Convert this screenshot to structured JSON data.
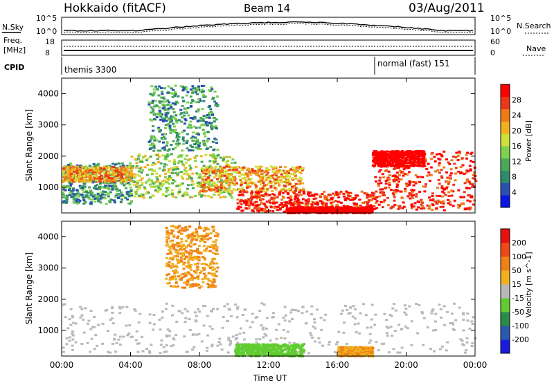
{
  "header": {
    "station": "Hokkaido (fitACF)",
    "beam": "Beam 14",
    "date": "03/Aug/2011"
  },
  "top_strip": {
    "nsky_label": "N.Sky",
    "nsearch_label": "N.Search",
    "freq_label_1": "Freq.",
    "freq_label_2": "[MHz]",
    "nave_label": "Nave",
    "cpid_label": "CPID",
    "left_ticks": [
      "10^5",
      "10^0"
    ],
    "right_ticks": [
      "10^5",
      "10^0"
    ],
    "freq_ticks": [
      "18",
      "8"
    ],
    "nave_ticks": [
      "60",
      "0"
    ],
    "cpid_segments": [
      {
        "label": "themis 3300",
        "start_hour": 0
      },
      {
        "label": "normal (fast) 151",
        "start_hour": 18
      }
    ]
  },
  "chart_data": [
    {
      "type": "heatmap",
      "name": "power",
      "ylabel": "Slant Range [km]",
      "xlabel": "",
      "xlim": [
        0,
        24
      ],
      "ylim": [
        180,
        4500
      ],
      "x_ticks": [
        0,
        4,
        8,
        12,
        16,
        20,
        24
      ],
      "y_ticks": [
        1000,
        2000,
        3000,
        4000
      ],
      "colorbar": {
        "label": "Power [dB]",
        "ticks": [
          4,
          8,
          12,
          16,
          20,
          24,
          28
        ],
        "colors": [
          "#0a14e6",
          "#2a4fb0",
          "#2d8a6a",
          "#4aa85a",
          "#7fd34a",
          "#cfe03a",
          "#f0b020",
          "#f07a18",
          "#e83818",
          "#ff0000"
        ]
      },
      "regions": [
        {
          "t0": 0,
          "t1": 4,
          "r0": 500,
          "r1": 1800,
          "level": 1
        },
        {
          "t0": 0,
          "t1": 4,
          "r0": 1200,
          "r1": 1700,
          "level": 3
        },
        {
          "t0": 4,
          "t1": 10,
          "r0": 700,
          "r1": 2100,
          "level": 2
        },
        {
          "t0": 5,
          "t1": 9,
          "r0": 2200,
          "r1": 4300,
          "level": 1
        },
        {
          "t0": 8,
          "t1": 14,
          "r0": 900,
          "r1": 1700,
          "level": 3
        },
        {
          "t0": 10,
          "t1": 18,
          "r0": 250,
          "r1": 900,
          "level": 4
        },
        {
          "t0": 13,
          "t1": 18,
          "r0": 200,
          "r1": 400,
          "level": 5
        },
        {
          "t0": 18,
          "t1": 24,
          "r0": 300,
          "r1": 2200,
          "level": 4
        },
        {
          "t0": 18,
          "t1": 21,
          "r0": 1700,
          "r1": 2200,
          "level": 5
        }
      ]
    },
    {
      "type": "heatmap",
      "name": "velocity",
      "ylabel": "Slant Range [km]",
      "xlabel": "Time UT",
      "xlim": [
        0,
        24
      ],
      "ylim": [
        180,
        4500
      ],
      "x_ticks": [
        0,
        4,
        8,
        12,
        16,
        20,
        24
      ],
      "x_tick_labels": [
        "00:00",
        "04:00",
        "08:00",
        "12:00",
        "16:00",
        "20:00",
        "00:00"
      ],
      "y_ticks": [
        1000,
        2000,
        3000,
        4000
      ],
      "colorbar": {
        "label": "Velocity [m s^-1]",
        "ticks": [
          200,
          100,
          50,
          15,
          -15,
          -50,
          -100,
          -200
        ],
        "colors": [
          "#1a1ae0",
          "#2a5ab0",
          "#2a8a4a",
          "#60cc30",
          "#b8b8b8",
          "#f0b020",
          "#f08018",
          "#f04818",
          "#e81010"
        ]
      },
      "regions": [
        {
          "t0": 0,
          "t1": 24,
          "r0": 300,
          "r1": 1900,
          "level": 0
        },
        {
          "t0": 6,
          "t1": 9,
          "r0": 2400,
          "r1": 4400,
          "level": 1
        },
        {
          "t0": 10,
          "t1": 14,
          "r0": 200,
          "r1": 600,
          "level": 2
        },
        {
          "t0": 16,
          "t1": 18,
          "r0": 200,
          "r1": 500,
          "level": 1
        }
      ]
    }
  ]
}
